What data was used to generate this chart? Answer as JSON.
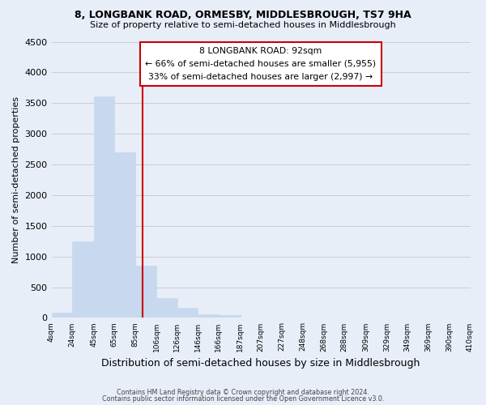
{
  "title": "8, LONGBANK ROAD, ORMESBY, MIDDLESBROUGH, TS7 9HA",
  "subtitle": "Size of property relative to semi-detached houses in Middlesbrough",
  "xlabel": "Distribution of semi-detached houses by size in Middlesbrough",
  "ylabel": "Number of semi-detached properties",
  "bar_edges": [
    4,
    24,
    45,
    65,
    85,
    106,
    126,
    146,
    166,
    187,
    207,
    227,
    248,
    268,
    288,
    309,
    329,
    349,
    369,
    390,
    410
  ],
  "bar_heights": [
    80,
    1240,
    3610,
    2700,
    850,
    320,
    165,
    55,
    40,
    0,
    0,
    0,
    0,
    0,
    0,
    0,
    0,
    0,
    0,
    0
  ],
  "bar_color": "#c8d8ee",
  "bar_edgecolor": "#c8d8ee",
  "property_line_x": 92,
  "property_line_color": "#cc0000",
  "annotation_title": "8 LONGBANK ROAD: 92sqm",
  "annotation_line1": "← 66% of semi-detached houses are smaller (5,955)",
  "annotation_line2": "33% of semi-detached houses are larger (2,997) →",
  "annotation_box_facecolor": "#ffffff",
  "annotation_box_edgecolor": "#cc0000",
  "ylim": [
    0,
    4500
  ],
  "yticks": [
    0,
    500,
    1000,
    1500,
    2000,
    2500,
    3000,
    3500,
    4000,
    4500
  ],
  "tick_labels": [
    "4sqm",
    "24sqm",
    "45sqm",
    "65sqm",
    "85sqm",
    "106sqm",
    "126sqm",
    "146sqm",
    "166sqm",
    "187sqm",
    "207sqm",
    "227sqm",
    "248sqm",
    "268sqm",
    "288sqm",
    "309sqm",
    "329sqm",
    "349sqm",
    "369sqm",
    "390sqm",
    "410sqm"
  ],
  "grid_color": "#cccccc",
  "background_color": "#e8eef8",
  "footer1": "Contains HM Land Registry data © Crown copyright and database right 2024.",
  "footer2": "Contains public sector information licensed under the Open Government Licence v3.0."
}
